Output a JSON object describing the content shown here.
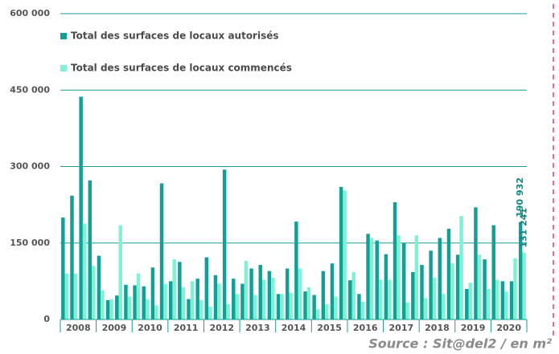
{
  "chart_data": {
    "type": "bar",
    "groups": [
      "2008",
      "2009",
      "2010",
      "2011",
      "2012",
      "2013",
      "2014",
      "2015",
      "2016",
      "2017",
      "2018",
      "2019",
      "2020"
    ],
    "categories": [
      null,
      null,
      null,
      null,
      null,
      null,
      null,
      null,
      null,
      null,
      null,
      null,
      null,
      null,
      null,
      null,
      null,
      null,
      null,
      null,
      null,
      null,
      null,
      null,
      null,
      null,
      null,
      null,
      null,
      null,
      null,
      null,
      null,
      null,
      null,
      null,
      null,
      null,
      null,
      null,
      null,
      null,
      null,
      null,
      null,
      null,
      null,
      null,
      null,
      null,
      null,
      null
    ],
    "series": [
      {
        "name": "Total des surfaces de locaux autorisés",
        "color": "#11a098",
        "values": [
          200000,
          243000,
          437000,
          273000,
          125000,
          38000,
          47000,
          68000,
          67000,
          65000,
          102000,
          267000,
          75000,
          113000,
          40000,
          80000,
          122000,
          87000,
          294000,
          80000,
          70000,
          100000,
          107000,
          95000,
          50000,
          100000,
          192000,
          55000,
          48000,
          95000,
          110000,
          260000,
          77000,
          50000,
          168000,
          155000,
          128000,
          230000,
          150000,
          93000,
          107000,
          135000,
          160000,
          178000,
          127000,
          60000,
          220000,
          118000,
          185000,
          75000,
          75000,
          190932
        ],
        "value_labels": [
          null,
          null,
          null,
          null,
          null,
          null,
          null,
          null,
          null,
          null,
          null,
          null,
          null,
          null,
          null,
          null,
          null,
          null,
          null,
          null,
          null,
          null,
          null,
          null,
          null,
          null,
          null,
          null,
          null,
          null,
          null,
          null,
          null,
          null,
          null,
          null,
          null,
          null,
          null,
          null,
          null,
          null,
          null,
          null,
          null,
          null,
          null,
          null,
          null,
          null,
          null,
          "190 932"
        ]
      },
      {
        "name": "Total des surfaces de locaux commencés",
        "color": "#7ef2d4",
        "values": [
          90000,
          90000,
          188000,
          105000,
          57000,
          40000,
          185000,
          45000,
          90000,
          40000,
          28000,
          70000,
          118000,
          63000,
          75000,
          38000,
          25000,
          70000,
          30000,
          50000,
          115000,
          48000,
          78000,
          82000,
          50000,
          52000,
          100000,
          63000,
          20000,
          30000,
          45000,
          253000,
          93000,
          35000,
          160000,
          78000,
          78000,
          165000,
          33000,
          165000,
          42000,
          82000,
          50000,
          110000,
          203000,
          72000,
          127000,
          60000,
          78000,
          55000,
          120000,
          131241
        ],
        "value_labels": [
          null,
          null,
          null,
          null,
          null,
          null,
          null,
          null,
          null,
          null,
          null,
          null,
          null,
          null,
          null,
          null,
          null,
          null,
          null,
          null,
          null,
          null,
          null,
          null,
          null,
          null,
          null,
          null,
          null,
          null,
          null,
          null,
          null,
          null,
          null,
          null,
          null,
          null,
          null,
          null,
          null,
          null,
          null,
          null,
          null,
          null,
          null,
          null,
          null,
          null,
          null,
          "131 241"
        ]
      }
    ],
    "ylim": [
      0,
      600000
    ],
    "yticks": [
      {
        "value": 0,
        "label": "0"
      },
      {
        "value": 150000,
        "label": "150 000"
      },
      {
        "value": 300000,
        "label": "300 000"
      },
      {
        "value": 450000,
        "label": "450 000"
      },
      {
        "value": 600000,
        "label": "600 000"
      }
    ],
    "grid": true,
    "source": "Source : Sit@del2 / en m²"
  }
}
